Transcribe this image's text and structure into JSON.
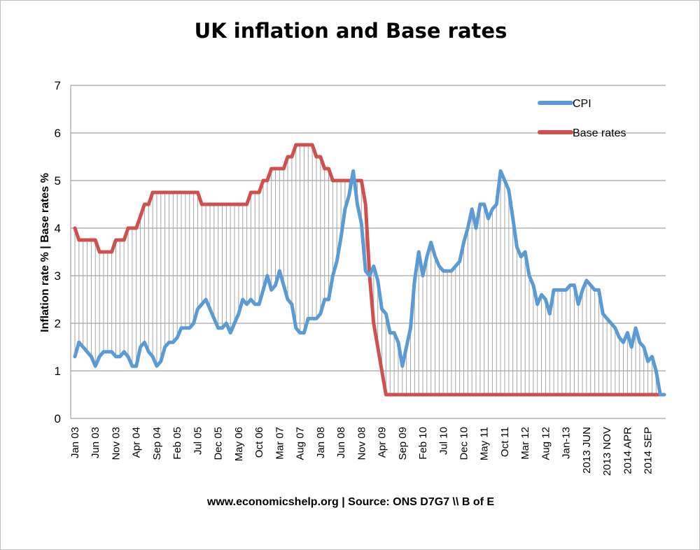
{
  "chart_data": {
    "type": "line",
    "title": "UK inflation and Base rates",
    "ylabel": "Inflation rate % | Base rates %",
    "xlabel": "www.economicshelp.org | Source: ONS D7G7 \\\\ B of E",
    "ylim": [
      0,
      7
    ],
    "yticks": [
      "0",
      "1",
      "2",
      "3",
      "4",
      "5",
      "6",
      "7"
    ],
    "grid": true,
    "legend_position": "top-right",
    "x_tick_labels": [
      "Jan 03",
      "Jun 03",
      "Nov 03",
      "Apr 04",
      "Sep 04",
      "Feb 05",
      "Jul 05",
      "Dec 05",
      "May 06",
      "Oct 06",
      "Mar 07",
      "Aug 07",
      "Jan 08",
      "Jun 08",
      "Nov 08",
      "Apr 09",
      "Sep 09",
      "Feb 10",
      "Jul 10",
      "Dec 10",
      "May 11",
      "Oct 11",
      "Mar 12",
      "Aug 12",
      "Jan-13",
      "2013 JUN",
      "2013 NOV",
      "2014 APR",
      "2014 SEP"
    ],
    "x_start": "Jan 2003",
    "x_end": "Feb 2015",
    "colors": {
      "cpi": "#5b9bd5",
      "base": "#d0504d"
    },
    "series": [
      {
        "name": "CPI",
        "values": [
          1.3,
          1.6,
          1.5,
          1.4,
          1.3,
          1.1,
          1.3,
          1.4,
          1.4,
          1.4,
          1.3,
          1.3,
          1.4,
          1.3,
          1.1,
          1.1,
          1.5,
          1.6,
          1.4,
          1.3,
          1.1,
          1.2,
          1.5,
          1.6,
          1.6,
          1.7,
          1.9,
          1.9,
          1.9,
          2.0,
          2.3,
          2.4,
          2.5,
          2.3,
          2.1,
          1.9,
          1.9,
          2.0,
          1.8,
          2.0,
          2.2,
          2.5,
          2.4,
          2.5,
          2.4,
          2.4,
          2.7,
          3.0,
          2.7,
          2.8,
          3.1,
          2.8,
          2.5,
          2.4,
          1.9,
          1.8,
          1.8,
          2.1,
          2.1,
          2.1,
          2.2,
          2.5,
          2.5,
          3.0,
          3.3,
          3.8,
          4.4,
          4.7,
          5.2,
          4.5,
          4.1,
          3.1,
          3.0,
          3.2,
          2.9,
          2.3,
          2.2,
          1.8,
          1.8,
          1.6,
          1.1,
          1.5,
          1.9,
          2.9,
          3.5,
          3.0,
          3.4,
          3.7,
          3.4,
          3.2,
          3.1,
          3.1,
          3.1,
          3.2,
          3.3,
          3.7,
          4.0,
          4.4,
          4.0,
          4.5,
          4.5,
          4.2,
          4.4,
          4.5,
          5.2,
          5.0,
          4.8,
          4.2,
          3.6,
          3.4,
          3.5,
          3.0,
          2.8,
          2.4,
          2.6,
          2.5,
          2.2,
          2.7,
          2.7,
          2.7,
          2.7,
          2.8,
          2.8,
          2.4,
          2.7,
          2.9,
          2.8,
          2.7,
          2.7,
          2.2,
          2.1,
          2.0,
          1.9,
          1.7,
          1.6,
          1.8,
          1.5,
          1.9,
          1.6,
          1.5,
          1.2,
          1.3,
          1.0,
          0.5,
          0.5
        ],
        "color": "#5b9bd5"
      },
      {
        "name": "Base rates",
        "values": [
          4.0,
          3.75,
          3.75,
          3.75,
          3.75,
          3.75,
          3.5,
          3.5,
          3.5,
          3.5,
          3.75,
          3.75,
          3.75,
          4.0,
          4.0,
          4.0,
          4.25,
          4.5,
          4.5,
          4.75,
          4.75,
          4.75,
          4.75,
          4.75,
          4.75,
          4.75,
          4.75,
          4.75,
          4.75,
          4.75,
          4.75,
          4.5,
          4.5,
          4.5,
          4.5,
          4.5,
          4.5,
          4.5,
          4.5,
          4.5,
          4.5,
          4.5,
          4.5,
          4.75,
          4.75,
          4.75,
          5.0,
          5.0,
          5.25,
          5.25,
          5.25,
          5.25,
          5.5,
          5.5,
          5.75,
          5.75,
          5.75,
          5.75,
          5.75,
          5.5,
          5.5,
          5.25,
          5.25,
          5.0,
          5.0,
          5.0,
          5.0,
          5.0,
          5.0,
          5.0,
          5.0,
          4.5,
          3.0,
          2.0,
          1.5,
          1.0,
          0.5,
          0.5,
          0.5,
          0.5,
          0.5,
          0.5,
          0.5,
          0.5,
          0.5,
          0.5,
          0.5,
          0.5,
          0.5,
          0.5,
          0.5,
          0.5,
          0.5,
          0.5,
          0.5,
          0.5,
          0.5,
          0.5,
          0.5,
          0.5,
          0.5,
          0.5,
          0.5,
          0.5,
          0.5,
          0.5,
          0.5,
          0.5,
          0.5,
          0.5,
          0.5,
          0.5,
          0.5,
          0.5,
          0.5,
          0.5,
          0.5,
          0.5,
          0.5,
          0.5,
          0.5,
          0.5,
          0.5,
          0.5,
          0.5,
          0.5,
          0.5,
          0.5,
          0.5,
          0.5,
          0.5,
          0.5,
          0.5,
          0.5,
          0.5,
          0.5,
          0.5,
          0.5,
          0.5,
          0.5,
          0.5,
          0.5,
          0.5,
          0.5,
          0.5
        ],
        "color": "#d0504d"
      }
    ]
  }
}
